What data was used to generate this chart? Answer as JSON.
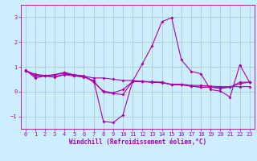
{
  "xlabel": "Windchill (Refroidissement éolien,°C)",
  "ylabel": "",
  "xlim": [
    -0.5,
    23.5
  ],
  "ylim": [
    -1.5,
    3.5
  ],
  "yticks": [
    -1,
    0,
    1,
    2,
    3
  ],
  "xticks": [
    0,
    1,
    2,
    3,
    4,
    5,
    6,
    7,
    8,
    9,
    10,
    11,
    12,
    13,
    14,
    15,
    16,
    17,
    18,
    19,
    20,
    21,
    22,
    23
  ],
  "background_color": "#cceeff",
  "grid_color": "#aacccc",
  "line_color": "#aa00aa",
  "lines": [
    [
      0.85,
      0.7,
      0.65,
      0.68,
      0.75,
      0.65,
      0.62,
      0.55,
      0.55,
      0.5,
      0.45,
      0.45,
      0.4,
      0.4,
      0.35,
      0.3,
      0.3,
      0.25,
      0.25,
      0.22,
      0.2,
      0.2,
      0.2,
      0.2
    ],
    [
      0.85,
      0.65,
      0.63,
      0.6,
      0.7,
      0.68,
      0.63,
      0.38,
      0.02,
      -0.05,
      0.08,
      0.4,
      0.4,
      0.38,
      0.38,
      0.28,
      0.28,
      0.22,
      0.18,
      0.18,
      0.18,
      0.18,
      0.38,
      0.38
    ],
    [
      0.88,
      0.55,
      0.63,
      0.58,
      0.68,
      0.63,
      0.58,
      0.45,
      -1.2,
      -1.25,
      -0.95,
      0.42,
      1.12,
      1.85,
      2.82,
      2.98,
      1.28,
      0.82,
      0.72,
      0.08,
      0.02,
      -0.22,
      1.08,
      0.38
    ],
    [
      0.85,
      0.63,
      0.63,
      0.68,
      0.78,
      0.68,
      0.62,
      0.42,
      -0.02,
      -0.08,
      -0.12,
      0.42,
      0.42,
      0.38,
      0.38,
      0.28,
      0.28,
      0.22,
      0.18,
      0.18,
      0.12,
      0.18,
      0.32,
      0.38
    ]
  ]
}
